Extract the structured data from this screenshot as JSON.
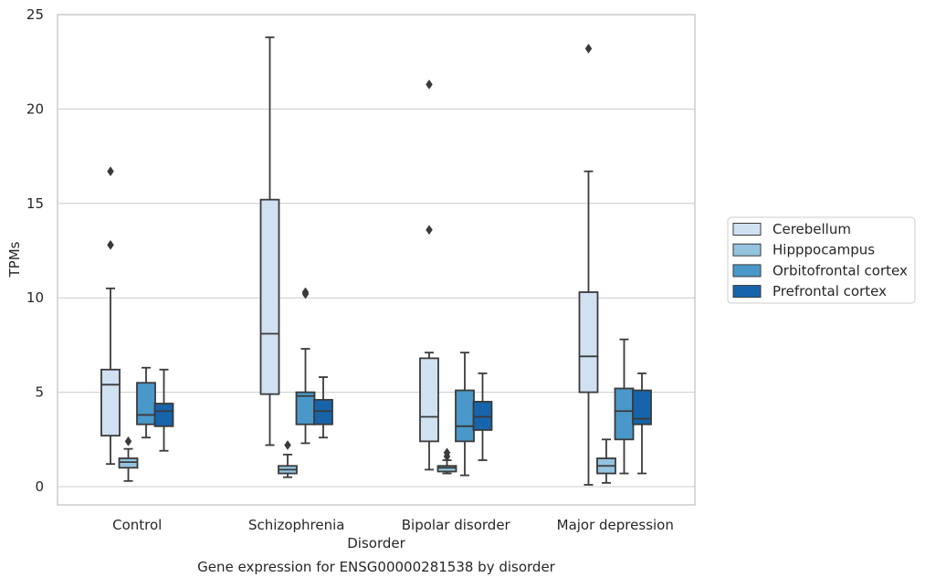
{
  "chart_data": {
    "type": "box",
    "title": "",
    "caption": "Gene expression for ENSG00000281538 by disorder",
    "xlabel": "Disorder",
    "ylabel": "TPMs",
    "ylim": [
      -1,
      25
    ],
    "yticks": [
      0,
      5,
      10,
      15,
      20,
      25
    ],
    "grid": "horizontal",
    "legend_position": "right",
    "categories": [
      "Control",
      "Schizophrenia",
      "Bipolar disorder",
      "Major depression"
    ],
    "series": [
      {
        "name": "Cerebellum",
        "color": "#d0e1f2",
        "boxes": [
          {
            "whisker_low": 1.2,
            "q1": 2.7,
            "median": 5.4,
            "q3": 6.2,
            "whisker_high": 10.5,
            "outliers": [
              12.8,
              16.7
            ]
          },
          {
            "whisker_low": 2.2,
            "q1": 4.9,
            "median": 8.1,
            "q3": 15.2,
            "whisker_high": 23.8,
            "outliers": []
          },
          {
            "whisker_low": 0.9,
            "q1": 2.4,
            "median": 3.7,
            "q3": 6.8,
            "whisker_high": 7.1,
            "outliers": [
              13.6,
              21.3
            ]
          },
          {
            "whisker_low": 0.1,
            "q1": 5.0,
            "median": 6.9,
            "q3": 10.3,
            "whisker_high": 16.7,
            "outliers": [
              23.2
            ]
          }
        ]
      },
      {
        "name": "Hipppocampus",
        "color": "#94c4df",
        "boxes": [
          {
            "whisker_low": 0.3,
            "q1": 1.0,
            "median": 1.3,
            "q3": 1.5,
            "whisker_high": 2.0,
            "outliers": [
              2.4
            ]
          },
          {
            "whisker_low": 0.5,
            "q1": 0.7,
            "median": 0.9,
            "q3": 1.1,
            "whisker_high": 1.7,
            "outliers": [
              2.2
            ]
          },
          {
            "whisker_low": 0.7,
            "q1": 0.8,
            "median": 1.0,
            "q3": 1.1,
            "whisker_high": 1.4,
            "outliers": [
              1.6,
              1.8
            ]
          },
          {
            "whisker_low": 0.2,
            "q1": 0.7,
            "median": 1.1,
            "q3": 1.5,
            "whisker_high": 2.5,
            "outliers": []
          }
        ]
      },
      {
        "name": "Orbitofrontal cortex",
        "color": "#4a98c9",
        "boxes": [
          {
            "whisker_low": 2.6,
            "q1": 3.3,
            "median": 3.8,
            "q3": 5.5,
            "whisker_high": 6.3,
            "outliers": []
          },
          {
            "whisker_low": 2.3,
            "q1": 3.3,
            "median": 4.8,
            "q3": 5.0,
            "whisker_high": 7.3,
            "outliers": [
              10.2,
              10.3
            ]
          },
          {
            "whisker_low": 0.6,
            "q1": 2.4,
            "median": 3.2,
            "q3": 5.1,
            "whisker_high": 7.1,
            "outliers": []
          },
          {
            "whisker_low": 0.7,
            "q1": 2.5,
            "median": 4.0,
            "q3": 5.2,
            "whisker_high": 7.8,
            "outliers": []
          }
        ]
      },
      {
        "name": "Prefrontal cortex",
        "color": "#1764ab",
        "boxes": [
          {
            "whisker_low": 1.9,
            "q1": 3.2,
            "median": 4.0,
            "q3": 4.4,
            "whisker_high": 6.2,
            "outliers": []
          },
          {
            "whisker_low": 2.6,
            "q1": 3.3,
            "median": 4.0,
            "q3": 4.6,
            "whisker_high": 5.8,
            "outliers": []
          },
          {
            "whisker_low": 1.4,
            "q1": 3.0,
            "median": 3.7,
            "q3": 4.5,
            "whisker_high": 6.0,
            "outliers": []
          },
          {
            "whisker_low": 0.7,
            "q1": 3.3,
            "median": 3.6,
            "q3": 5.1,
            "whisker_high": 6.0,
            "outliers": []
          }
        ]
      }
    ]
  }
}
